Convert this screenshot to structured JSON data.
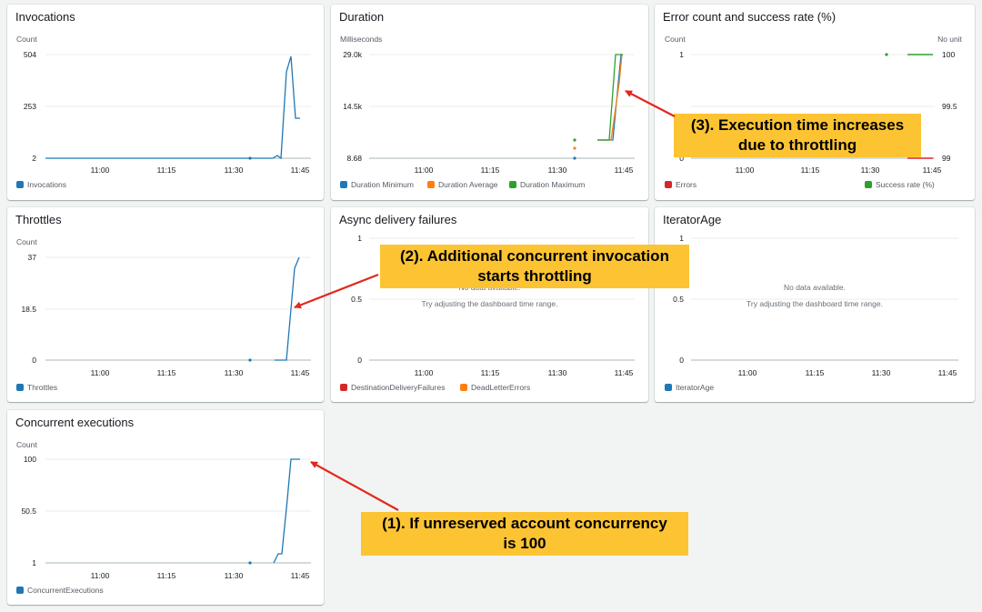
{
  "colors": {
    "blue": "#1f77b4",
    "orange": "#ff7f0e",
    "green": "#2ca02c",
    "red": "#d62728",
    "callout": "#fcc433",
    "arrow": "#e3271c"
  },
  "panels": {
    "invocations": {
      "title": "Invocations",
      "unit": "Count",
      "yticks": [
        "504",
        "253",
        "2"
      ],
      "xticks": [
        "11:00",
        "11:15",
        "11:30",
        "11:45"
      ],
      "legend": [
        {
          "label": "Invocations",
          "color": "#1f77b4"
        }
      ]
    },
    "duration": {
      "title": "Duration",
      "unit": "Milliseconds",
      "yticks": [
        "29.0k",
        "14.5k",
        "8.68"
      ],
      "xticks": [
        "11:00",
        "11:15",
        "11:30",
        "11:45"
      ],
      "legend": [
        {
          "label": "Duration Minimum",
          "color": "#1f77b4"
        },
        {
          "label": "Duration Average",
          "color": "#ff7f0e"
        },
        {
          "label": "Duration Maximum",
          "color": "#2ca02c"
        }
      ]
    },
    "errors": {
      "title": "Error count and success rate (%)",
      "unit_left": "Count",
      "unit_right": "No unit",
      "yticks_left": [
        "1",
        "0"
      ],
      "yticks_right": [
        "100",
        "99.5",
        "99"
      ],
      "xticks": [
        "11:00",
        "11:15",
        "11:30",
        "11:45"
      ],
      "legend": [
        {
          "label": "Errors",
          "color": "#d62728"
        },
        {
          "label": "Success rate (%)",
          "color": "#2ca02c"
        }
      ]
    },
    "throttles": {
      "title": "Throttles",
      "unit": "Count",
      "yticks": [
        "37",
        "18.5",
        "0"
      ],
      "xticks": [
        "11:00",
        "11:15",
        "11:30",
        "11:45"
      ],
      "legend": [
        {
          "label": "Throttles",
          "color": "#1f77b4"
        }
      ]
    },
    "async": {
      "title": "Async delivery failures",
      "yticks": [
        "1",
        "0.5",
        "0"
      ],
      "xticks": [
        "11:00",
        "11:15",
        "11:30",
        "11:45"
      ],
      "nodata_line1": "No data available.",
      "nodata_line2": "Try adjusting the dashboard time range.",
      "legend": [
        {
          "label": "DestinationDeliveryFailures",
          "color": "#d62728"
        },
        {
          "label": "DeadLetterErrors",
          "color": "#ff7f0e"
        }
      ]
    },
    "iterator": {
      "title": "IteratorAge",
      "yticks": [
        "1",
        "0.5",
        "0"
      ],
      "xticks": [
        "11:00",
        "11:15",
        "11:30",
        "11:45"
      ],
      "nodata_line1": "No data available.",
      "nodata_line2": "Try adjusting the dashboard time range.",
      "legend": [
        {
          "label": "IteratorAge",
          "color": "#1f77b4"
        }
      ]
    },
    "concurrent": {
      "title": "Concurrent executions",
      "unit": "Count",
      "yticks": [
        "100",
        "50.5",
        "1"
      ],
      "xticks": [
        "11:00",
        "11:15",
        "11:30",
        "11:45"
      ],
      "legend": [
        {
          "label": "ConcurrentExecutions",
          "color": "#1f77b4"
        }
      ]
    }
  },
  "callouts": {
    "c1_line1": "(1). If unreserved account concurrency",
    "c1_line2": "is 100",
    "c2_line1": "(2). Additional concurrent invocation",
    "c2_line2": "starts throttling",
    "c3_line1": "(3). Execution time increases",
    "c3_line2": "due to throttling"
  },
  "chart_data": [
    {
      "type": "line",
      "title": "Invocations",
      "ylabel": "Count",
      "ylim": [
        2,
        504
      ],
      "series": [
        {
          "name": "Invocations",
          "x": [
            "11:34",
            "11:39",
            "11:40",
            "11:41",
            "11:42",
            "11:43",
            "11:44",
            "11:45"
          ],
          "values": [
            2,
            2,
            8,
            2,
            380,
            490,
            210,
            210
          ]
        }
      ]
    },
    {
      "type": "line",
      "title": "Duration",
      "ylabel": "Milliseconds",
      "ylim": [
        8.68,
        29000
      ],
      "series": [
        {
          "name": "Duration Minimum",
          "x": [
            "11:34",
            "11:37",
            "11:40",
            "11:42",
            "11:43",
            "11:44"
          ],
          "values": [
            8.68,
            3900,
            3900,
            29000,
            29000,
            29000
          ]
        },
        {
          "name": "Duration Average",
          "x": [
            "11:34",
            "11:37",
            "11:40",
            "11:42",
            "11:43",
            "11:44"
          ],
          "values": [
            1900,
            3900,
            3900,
            22000,
            29000,
            29000
          ]
        },
        {
          "name": "Duration Maximum",
          "x": [
            "11:34",
            "11:37",
            "11:40",
            "11:41",
            "11:42",
            "11:44"
          ],
          "values": [
            3900,
            3900,
            3900,
            29000,
            29000,
            29000
          ]
        }
      ]
    },
    {
      "type": "line",
      "title": "Error count and success rate (%)",
      "series": [
        {
          "name": "Errors",
          "x": [
            "11:39",
            "11:44"
          ],
          "values": [
            0,
            0
          ]
        },
        {
          "name": "Success rate (%)",
          "x": [
            "11:34",
            "11:39",
            "11:44"
          ],
          "values": [
            100,
            100,
            100
          ]
        }
      ]
    },
    {
      "type": "line",
      "title": "Throttles",
      "ylabel": "Count",
      "ylim": [
        0,
        37
      ],
      "series": [
        {
          "name": "Throttles",
          "x": [
            "11:34",
            "11:40",
            "11:41",
            "11:42",
            "11:43",
            "11:44"
          ],
          "values": [
            0,
            0,
            0,
            18.5,
            33,
            37
          ]
        }
      ]
    },
    {
      "type": "line",
      "title": "Concurrent executions",
      "ylabel": "Count",
      "ylim": [
        1,
        100
      ],
      "series": [
        {
          "name": "ConcurrentExecutions",
          "x": [
            "11:34",
            "11:39",
            "11:40",
            "11:41",
            "11:42",
            "11:43",
            "11:45"
          ],
          "values": [
            1,
            1,
            8,
            8,
            60,
            100,
            100
          ]
        }
      ]
    }
  ]
}
